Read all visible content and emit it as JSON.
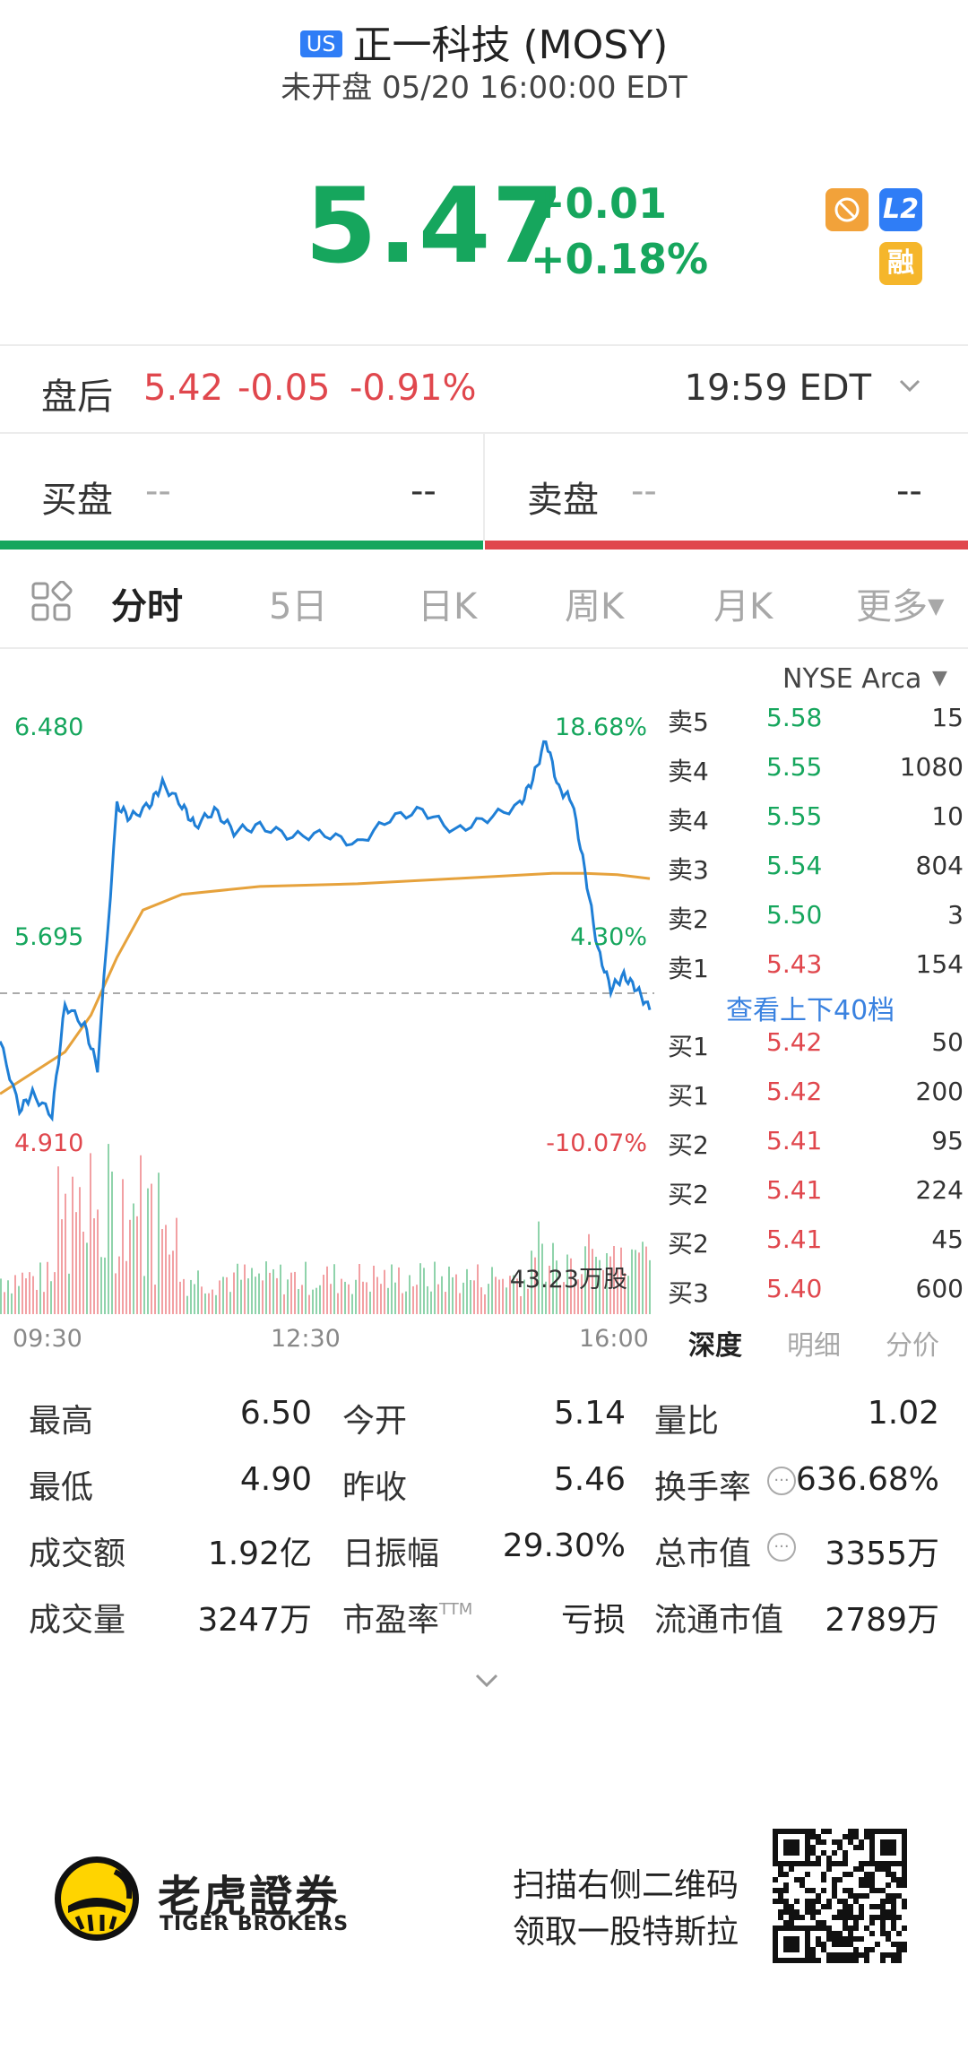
{
  "header": {
    "market_badge": "US",
    "title": "正一科技 (MOSY)",
    "status": "未开盘 05/20 16:00:00 EDT"
  },
  "quote": {
    "price": "5.47",
    "change": "+0.01",
    "change_pct": "+0.18%",
    "tags": {
      "l2": "L2",
      "margin": "融"
    },
    "colors": {
      "up": "#16a65d",
      "down": "#e0474d"
    }
  },
  "after_hours": {
    "label": "盘后",
    "price": "5.42",
    "change": "-0.05",
    "change_pct": "-0.91%",
    "time": "19:59 EDT"
  },
  "bid_ask": {
    "bid_label": "买盘",
    "bid_price": "--",
    "bid_size": "--",
    "ask_label": "卖盘",
    "ask_price": "--",
    "ask_size": "--"
  },
  "tabs": [
    "分时",
    "5日",
    "日K",
    "周K",
    "月K",
    "更多"
  ],
  "exchange": "NYSE Arca",
  "chart_data": {
    "type": "line",
    "y_left_labels": [
      "6.480",
      "5.695",
      "4.910"
    ],
    "y_right_labels": [
      "18.68%",
      "4.30%",
      "-10.07%"
    ],
    "x_labels": [
      "09:30",
      "12:30",
      "16:00"
    ],
    "ylim": [
      4.91,
      6.48
    ],
    "prev_close": 5.46,
    "volume_label": "43.23万股",
    "price_x": [
      0,
      3,
      5,
      8,
      10,
      13,
      15,
      18,
      20,
      23,
      25,
      28,
      30,
      33,
      36,
      40,
      45,
      50,
      55,
      60,
      65,
      70,
      75,
      80,
      82,
      84,
      86,
      88,
      90,
      92,
      94,
      96,
      98,
      100
    ],
    "price": [
      5.3,
      5.04,
      5.1,
      5.02,
      5.44,
      5.36,
      5.2,
      6.2,
      6.15,
      6.2,
      6.28,
      6.2,
      6.12,
      6.18,
      6.1,
      6.12,
      6.08,
      6.09,
      6.05,
      6.15,
      6.18,
      6.1,
      6.15,
      6.2,
      6.3,
      6.45,
      6.26,
      6.22,
      5.95,
      5.65,
      5.5,
      5.55,
      5.5,
      5.42
    ],
    "avg_x": [
      0,
      5,
      10,
      14,
      18,
      22,
      28,
      40,
      55,
      70,
      85,
      90,
      95,
      100
    ],
    "avg": [
      5.1,
      5.18,
      5.26,
      5.4,
      5.62,
      5.8,
      5.86,
      5.89,
      5.9,
      5.92,
      5.94,
      5.94,
      5.935,
      5.92
    ]
  },
  "order_book": {
    "asks": [
      {
        "side": "卖5",
        "price": "5.58",
        "size": "15"
      },
      {
        "side": "卖4",
        "price": "5.55",
        "size": "1080"
      },
      {
        "side": "卖4",
        "price": "5.55",
        "size": "10"
      },
      {
        "side": "卖3",
        "price": "5.54",
        "size": "804"
      },
      {
        "side": "卖2",
        "price": "5.50",
        "size": "3"
      },
      {
        "side": "卖1",
        "price": "5.43",
        "size": "154"
      }
    ],
    "view_40": "查看上下40档",
    "bids": [
      {
        "side": "买1",
        "price": "5.42",
        "size": "50"
      },
      {
        "side": "买1",
        "price": "5.42",
        "size": "200"
      },
      {
        "side": "买2",
        "price": "5.41",
        "size": "95"
      },
      {
        "side": "买2",
        "price": "5.41",
        "size": "224"
      },
      {
        "side": "买2",
        "price": "5.41",
        "size": "45"
      },
      {
        "side": "买3",
        "price": "5.40",
        "size": "600"
      }
    ],
    "sub_tabs": [
      "深度",
      "明细",
      "分价"
    ]
  },
  "stats": {
    "high_label": "最高",
    "high": "6.50",
    "open_label": "今开",
    "open": "5.14",
    "volratio_label": "量比",
    "volratio": "1.02",
    "low_label": "最低",
    "low": "4.90",
    "prevclose_label": "昨收",
    "prevclose": "5.46",
    "turnover_label": "换手率",
    "turnover": "636.68%",
    "amount_label": "成交额",
    "amount": "1.92亿",
    "amplitude_label": "日振幅",
    "amplitude": "29.30%",
    "mktcap_label": "总市值",
    "mktcap": "3355万",
    "volume_label": "成交量",
    "volume": "3247万",
    "pe_label": "市盈率",
    "pe_sup": "TTM",
    "pe": "亏损",
    "float_label": "流通市值",
    "float": "2789万"
  },
  "footer": {
    "brand_cn": "老虎證券",
    "brand_en": "TIGER BROKERS",
    "promo_line1": "扫描右侧二维码",
    "promo_line2": "领取一股特斯拉"
  }
}
